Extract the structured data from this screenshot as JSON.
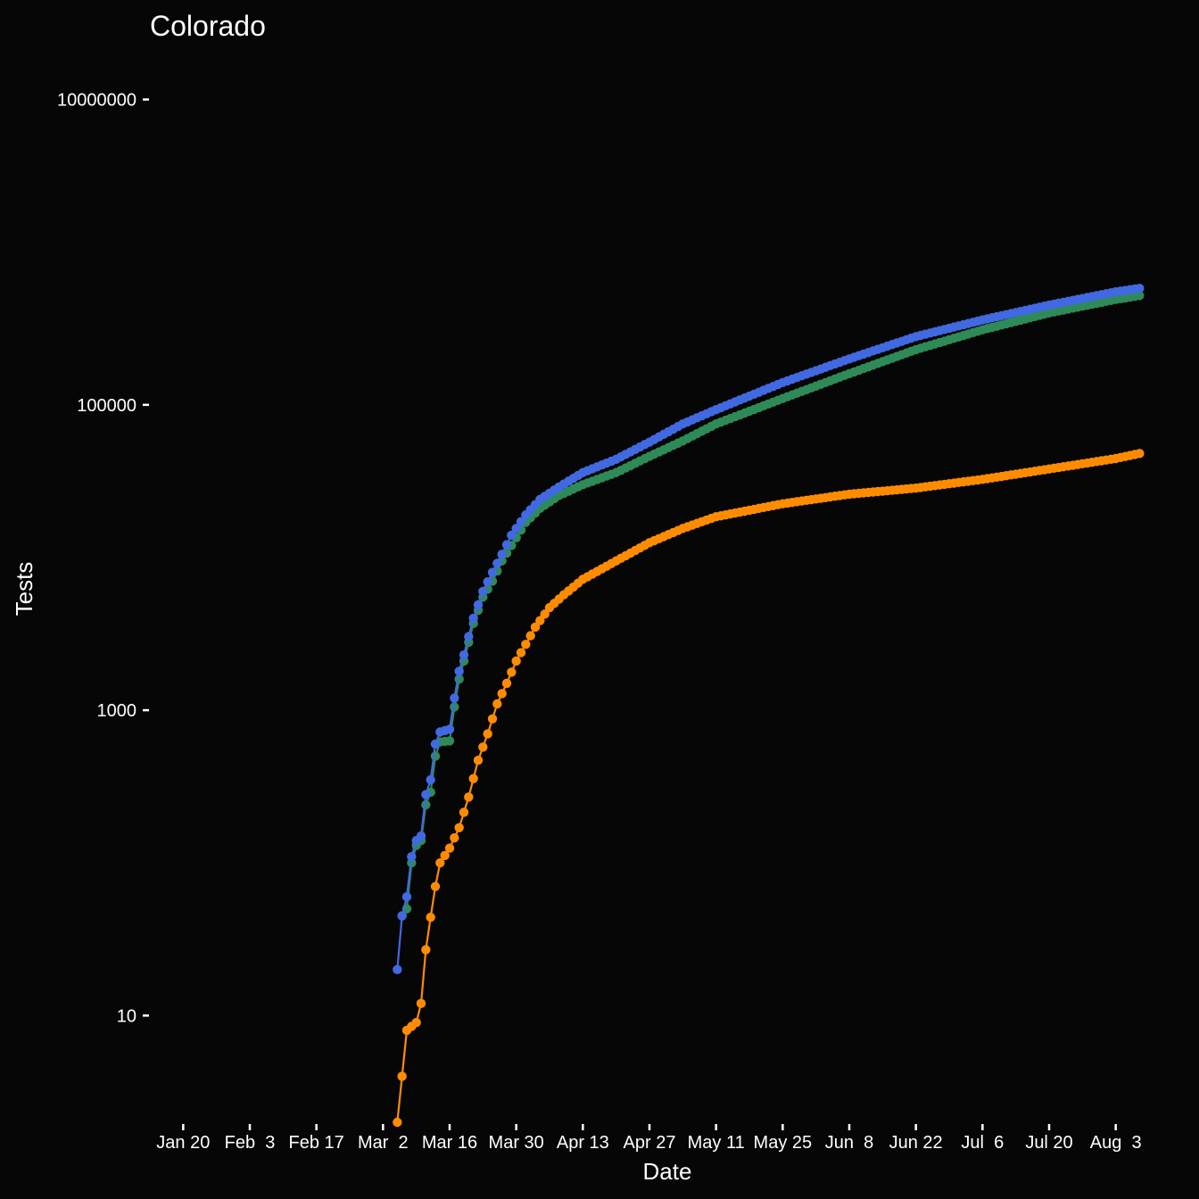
{
  "chart_data": {
    "type": "line",
    "title": "Colorado",
    "xlabel": "Date",
    "ylabel": "Tests",
    "y_scale": "log10",
    "ylim": [
      2,
      20000000
    ],
    "x_domain": [
      "2020-01-13",
      "2020-08-10"
    ],
    "grid": false,
    "legend": "none",
    "x_ticks": [
      {
        "date": "2020-01-20",
        "label": "Jan 20"
      },
      {
        "date": "2020-02-03",
        "label": "Feb  3"
      },
      {
        "date": "2020-02-17",
        "label": "Feb 17"
      },
      {
        "date": "2020-03-02",
        "label": "Mar  2"
      },
      {
        "date": "2020-03-16",
        "label": "Mar 16"
      },
      {
        "date": "2020-03-30",
        "label": "Mar 30"
      },
      {
        "date": "2020-04-13",
        "label": "Apr 13"
      },
      {
        "date": "2020-04-27",
        "label": "Apr 27"
      },
      {
        "date": "2020-05-11",
        "label": "May 11"
      },
      {
        "date": "2020-05-25",
        "label": "May 25"
      },
      {
        "date": "2020-06-08",
        "label": "Jun  8"
      },
      {
        "date": "2020-06-22",
        "label": "Jun 22"
      },
      {
        "date": "2020-07-06",
        "label": "Jul  6"
      },
      {
        "date": "2020-07-20",
        "label": "Jul 20"
      },
      {
        "date": "2020-08-03",
        "label": "Aug  3"
      }
    ],
    "y_ticks": [
      {
        "value": 10,
        "label": "10"
      },
      {
        "value": 1000,
        "label": "1000"
      },
      {
        "value": 100000,
        "label": "100000"
      },
      {
        "value": 10000000,
        "label": "10000000"
      }
    ],
    "series": [
      {
        "color": "#ff8c00",
        "start": "2020-03-05",
        "end": "2020-08-08",
        "anchors": [
          {
            "x": "2020-03-05",
            "y": 2
          },
          {
            "x": "2020-03-06",
            "y": 4
          },
          {
            "x": "2020-03-07",
            "y": 8
          },
          {
            "x": "2020-03-09",
            "y": 9
          },
          {
            "x": "2020-03-10",
            "y": 12
          },
          {
            "x": "2020-03-11",
            "y": 27
          },
          {
            "x": "2020-03-12",
            "y": 44
          },
          {
            "x": "2020-03-13",
            "y": 70
          },
          {
            "x": "2020-03-14",
            "y": 100
          },
          {
            "x": "2020-03-16",
            "y": 125
          },
          {
            "x": "2020-03-18",
            "y": 170
          },
          {
            "x": "2020-03-20",
            "y": 270
          },
          {
            "x": "2020-03-22",
            "y": 470
          },
          {
            "x": "2020-03-24",
            "y": 700
          },
          {
            "x": "2020-03-26",
            "y": 1100
          },
          {
            "x": "2020-03-28",
            "y": 1500
          },
          {
            "x": "2020-03-30",
            "y": 2100
          },
          {
            "x": "2020-04-01",
            "y": 2700
          },
          {
            "x": "2020-04-03",
            "y": 3500
          },
          {
            "x": "2020-04-06",
            "y": 4700
          },
          {
            "x": "2020-04-09",
            "y": 5700
          },
          {
            "x": "2020-04-13",
            "y": 7200
          },
          {
            "x": "2020-04-20",
            "y": 9500
          },
          {
            "x": "2020-04-27",
            "y": 12500
          },
          {
            "x": "2020-05-04",
            "y": 15500
          },
          {
            "x": "2020-05-11",
            "y": 18500
          },
          {
            "x": "2020-05-25",
            "y": 22500
          },
          {
            "x": "2020-06-08",
            "y": 26000
          },
          {
            "x": "2020-06-22",
            "y": 28500
          },
          {
            "x": "2020-07-06",
            "y": 32500
          },
          {
            "x": "2020-07-20",
            "y": 38000
          },
          {
            "x": "2020-08-03",
            "y": 44500
          },
          {
            "x": "2020-08-08",
            "y": 48000
          }
        ]
      },
      {
        "color": "#2e8b57",
        "start": "2020-03-06",
        "end": "2020-08-08",
        "anchors": [
          {
            "x": "2020-03-06",
            "y": 45
          },
          {
            "x": "2020-03-07",
            "y": 50
          },
          {
            "x": "2020-03-08",
            "y": 100
          },
          {
            "x": "2020-03-09",
            "y": 130
          },
          {
            "x": "2020-03-10",
            "y": 140
          },
          {
            "x": "2020-03-11",
            "y": 240
          },
          {
            "x": "2020-03-12",
            "y": 290
          },
          {
            "x": "2020-03-13",
            "y": 500
          },
          {
            "x": "2020-03-14",
            "y": 620
          },
          {
            "x": "2020-03-16",
            "y": 630
          },
          {
            "x": "2020-03-17",
            "y": 1050
          },
          {
            "x": "2020-03-18",
            "y": 1600
          },
          {
            "x": "2020-03-19",
            "y": 2100
          },
          {
            "x": "2020-03-21",
            "y": 3700
          },
          {
            "x": "2020-03-23",
            "y": 5500
          },
          {
            "x": "2020-03-25",
            "y": 7000
          },
          {
            "x": "2020-03-27",
            "y": 9500
          },
          {
            "x": "2020-03-29",
            "y": 12000
          },
          {
            "x": "2020-04-01",
            "y": 17000
          },
          {
            "x": "2020-04-04",
            "y": 21000
          },
          {
            "x": "2020-04-08",
            "y": 25500
          },
          {
            "x": "2020-04-13",
            "y": 30000
          },
          {
            "x": "2020-04-20",
            "y": 36000
          },
          {
            "x": "2020-04-27",
            "y": 46000
          },
          {
            "x": "2020-05-04",
            "y": 58000
          },
          {
            "x": "2020-05-11",
            "y": 75000
          },
          {
            "x": "2020-05-25",
            "y": 110000
          },
          {
            "x": "2020-06-08",
            "y": 160000
          },
          {
            "x": "2020-06-22",
            "y": 230000
          },
          {
            "x": "2020-07-06",
            "y": 310000
          },
          {
            "x": "2020-07-20",
            "y": 400000
          },
          {
            "x": "2020-08-03",
            "y": 490000
          },
          {
            "x": "2020-08-08",
            "y": 520000
          }
        ]
      },
      {
        "color": "#4169e1",
        "start": "2020-03-05",
        "end": "2020-08-08",
        "anchors": [
          {
            "x": "2020-03-05",
            "y": 20
          },
          {
            "x": "2020-03-06",
            "y": 45
          },
          {
            "x": "2020-03-07",
            "y": 60
          },
          {
            "x": "2020-03-08",
            "y": 110
          },
          {
            "x": "2020-03-09",
            "y": 140
          },
          {
            "x": "2020-03-10",
            "y": 150
          },
          {
            "x": "2020-03-11",
            "y": 280
          },
          {
            "x": "2020-03-12",
            "y": 350
          },
          {
            "x": "2020-03-13",
            "y": 600
          },
          {
            "x": "2020-03-14",
            "y": 720
          },
          {
            "x": "2020-03-16",
            "y": 750
          },
          {
            "x": "2020-03-17",
            "y": 1200
          },
          {
            "x": "2020-03-18",
            "y": 1800
          },
          {
            "x": "2020-03-19",
            "y": 2300
          },
          {
            "x": "2020-03-21",
            "y": 4000
          },
          {
            "x": "2020-03-23",
            "y": 6000
          },
          {
            "x": "2020-03-25",
            "y": 8000
          },
          {
            "x": "2020-03-27",
            "y": 10500
          },
          {
            "x": "2020-03-29",
            "y": 14000
          },
          {
            "x": "2020-04-01",
            "y": 19000
          },
          {
            "x": "2020-04-04",
            "y": 24000
          },
          {
            "x": "2020-04-08",
            "y": 29000
          },
          {
            "x": "2020-04-13",
            "y": 36000
          },
          {
            "x": "2020-04-20",
            "y": 44000
          },
          {
            "x": "2020-04-27",
            "y": 57000
          },
          {
            "x": "2020-05-04",
            "y": 75000
          },
          {
            "x": "2020-05-11",
            "y": 93000
          },
          {
            "x": "2020-05-25",
            "y": 140000
          },
          {
            "x": "2020-06-08",
            "y": 200000
          },
          {
            "x": "2020-06-22",
            "y": 280000
          },
          {
            "x": "2020-07-06",
            "y": 360000
          },
          {
            "x": "2020-07-20",
            "y": 450000
          },
          {
            "x": "2020-08-03",
            "y": 550000
          },
          {
            "x": "2020-08-08",
            "y": 580000
          }
        ]
      }
    ]
  }
}
